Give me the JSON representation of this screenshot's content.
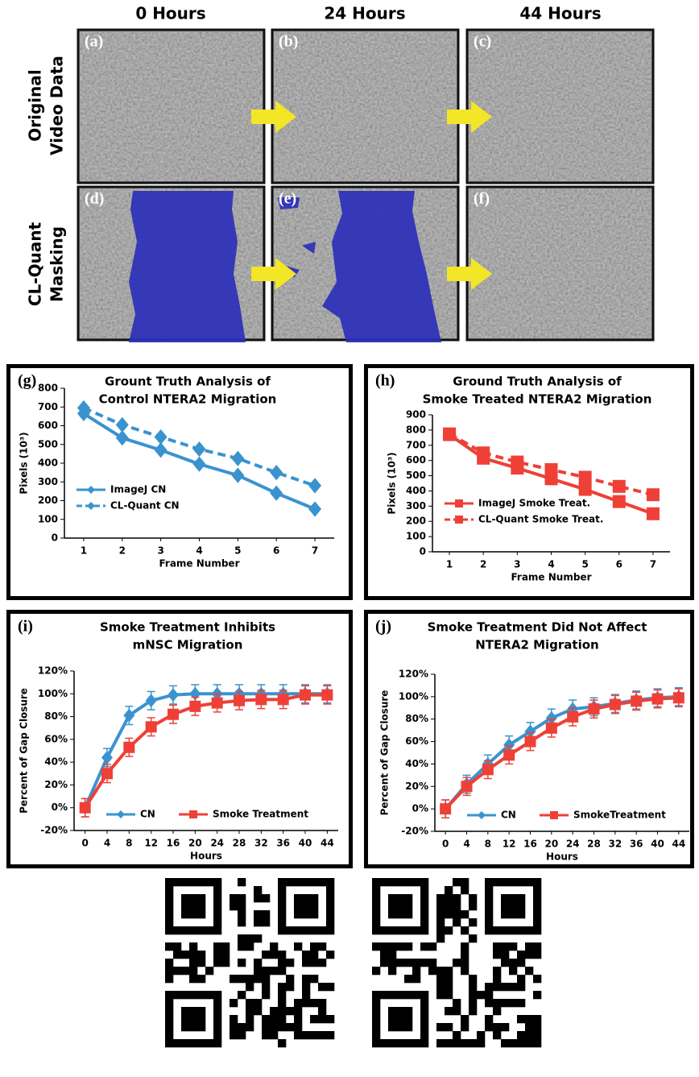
{
  "column_headers": [
    "0 Hours",
    "24 Hours",
    "44 Hours"
  ],
  "row_labels": [
    [
      "Original",
      "Video Data"
    ],
    [
      "CL-Quant",
      "Masking"
    ]
  ],
  "image_panels": [
    "(a)",
    "(b)",
    "(c)",
    "(d)",
    "(e)",
    "(f)"
  ],
  "chart_data": [
    {
      "type": "line",
      "panel": "(g)",
      "title": [
        "Grount Truth Analysis of",
        "Control NTERA2 Migration"
      ],
      "x_label": "Frame Number",
      "y_label": "Pixels (10³)",
      "categories": [
        "1",
        "2",
        "3",
        "4",
        "5",
        "6",
        "7"
      ],
      "ylim": [
        0,
        800
      ],
      "yticks": [
        0,
        100,
        200,
        300,
        400,
        500,
        600,
        700,
        800
      ],
      "legend": "lower left",
      "series": [
        {
          "name": "ImageJ CN",
          "color": "#3a93cf",
          "marker": "diamond",
          "dashed": false,
          "values": [
            665,
            535,
            470,
            395,
            335,
            240,
            155
          ]
        },
        {
          "name": "CL-Quant CN",
          "color": "#3a93cf",
          "marker": "diamond",
          "dashed": true,
          "values": [
            695,
            605,
            540,
            475,
            425,
            350,
            280
          ]
        }
      ]
    },
    {
      "type": "line",
      "panel": "(h)",
      "title": [
        "Ground Truth Analysis of",
        "Smoke Treated NTERA2 Migration"
      ],
      "x_label": "Frame Number",
      "y_label": "Pixels (10³)",
      "categories": [
        "1",
        "2",
        "3",
        "4",
        "5",
        "6",
        "7"
      ],
      "ylim": [
        0,
        900
      ],
      "yticks": [
        0,
        100,
        200,
        300,
        400,
        500,
        600,
        700,
        800,
        900
      ],
      "legend": "lower left",
      "series": [
        {
          "name": "ImageJ Smoke Treat.",
          "color": "#ee4037",
          "marker": "square",
          "dashed": false,
          "values": [
            770,
            615,
            550,
            480,
            410,
            330,
            250
          ]
        },
        {
          "name": "CL-Quant Smoke Treat.",
          "color": "#ee4037",
          "marker": "square",
          "dashed": true,
          "values": [
            775,
            650,
            590,
            540,
            490,
            430,
            375
          ]
        }
      ]
    },
    {
      "type": "line",
      "panel": "(i)",
      "title": [
        "Smoke Treatment Inhibits",
        "mNSC Migration"
      ],
      "x_label": "Hours",
      "y_label": "Percent of Gap Closure",
      "categories": [
        "0",
        "4",
        "8",
        "12",
        "16",
        "20",
        "24",
        "28",
        "32",
        "36",
        "40",
        "44"
      ],
      "ylim": [
        -20,
        120
      ],
      "yticks": [
        {
          "value": -20,
          "label": "-20%"
        },
        {
          "value": 0,
          "label": "0%"
        },
        {
          "value": 20,
          "label": "20%"
        },
        {
          "value": 40,
          "label": "40%"
        },
        {
          "value": 60,
          "label": "60%"
        },
        {
          "value": 80,
          "label": "80%"
        },
        {
          "value": 100,
          "label": "100%"
        },
        {
          "value": 120,
          "label": "120%"
        }
      ],
      "legend": "lower center",
      "series": [
        {
          "name": "CN",
          "color": "#3a93cf",
          "marker": "diamond",
          "dashed": false,
          "values": [
            0,
            44,
            81,
            94,
            99,
            100,
            100,
            100,
            100,
            100,
            100,
            100
          ],
          "errors": [
            8,
            8,
            8,
            8,
            8,
            8,
            8,
            8,
            8,
            8,
            8,
            8
          ]
        },
        {
          "name": "Smoke Treatment",
          "color": "#ee4037",
          "marker": "square",
          "dashed": false,
          "values": [
            0,
            30,
            53,
            71,
            82,
            89,
            92,
            94,
            95,
            95,
            99,
            99
          ],
          "errors": [
            8,
            8,
            8,
            8,
            8,
            8,
            8,
            8,
            8,
            8,
            8,
            8
          ]
        }
      ]
    },
    {
      "type": "line",
      "panel": "(j)",
      "title": [
        "Smoke Treatment Did Not Affect",
        "NTERA2 Migration"
      ],
      "x_label": "Hours",
      "y_label": "Percent of Gap Closure",
      "categories": [
        "0",
        "4",
        "8",
        "12",
        "16",
        "20",
        "24",
        "28",
        "32",
        "36",
        "40",
        "44"
      ],
      "ylim": [
        -20,
        120
      ],
      "yticks": [
        {
          "value": -20,
          "label": "-20%"
        },
        {
          "value": 0,
          "label": "0%"
        },
        {
          "value": 20,
          "label": "20%"
        },
        {
          "value": 40,
          "label": "40%"
        },
        {
          "value": 60,
          "label": "60%"
        },
        {
          "value": 80,
          "label": "80%"
        },
        {
          "value": 100,
          "label": "100%"
        },
        {
          "value": 120,
          "label": "120%"
        }
      ],
      "legend": "lower center",
      "series": [
        {
          "name": "CN",
          "color": "#3a93cf",
          "marker": "diamond",
          "dashed": false,
          "values": [
            0,
            22,
            40,
            57,
            69,
            81,
            89,
            91,
            94,
            97,
            99,
            100
          ],
          "errors": [
            8,
            8,
            8,
            8,
            8,
            8,
            8,
            8,
            8,
            8,
            8,
            8
          ]
        },
        {
          "name": "SmokeTreatment",
          "color": "#ee4037",
          "marker": "square",
          "dashed": false,
          "values": [
            0,
            20,
            35,
            48,
            60,
            72,
            82,
            89,
            93,
            96,
            98,
            99
          ],
          "errors": [
            8,
            8,
            8,
            8,
            8,
            8,
            8,
            8,
            8,
            8,
            8,
            8
          ]
        }
      ]
    }
  ]
}
